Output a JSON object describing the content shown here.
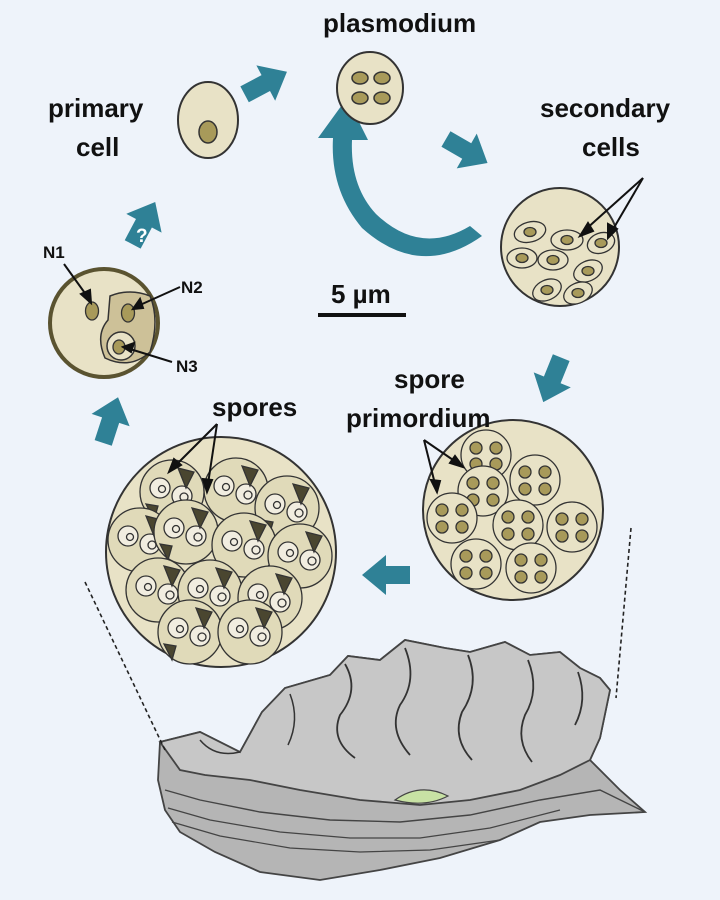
{
  "labels": {
    "plasmodium": "plasmodium",
    "primary_line1": "primary",
    "primary_line2": "cell",
    "secondary_line1": "secondary",
    "secondary_line2": "cells",
    "question_mark": "?",
    "n1": "N1",
    "n2": "N2",
    "n3": "N3",
    "scale_bar": "5 µm",
    "spore_primordium_line1": "spore",
    "spore_primordium_line2": "primordium",
    "spores": "spores"
  },
  "colors": {
    "background": "#eef3fa",
    "cell_fill": "#e8e2c6",
    "cell_stroke": "#333333",
    "nucleus_fill": "#a89a5a",
    "nucleus_dark": "#5a5330",
    "spore_fill": "#dcd6b8",
    "arrow_teal": "#2f8196",
    "oyster_grey": "#b5b5b5",
    "oyster_dark": "#8e8e8e",
    "oyster_green": "#c8e2a4"
  },
  "icons": {
    "cycle_arrows": "block-arrow-icon",
    "curved_arrow": "curved-arrow-icon",
    "oyster": "oyster-shell-icon"
  }
}
